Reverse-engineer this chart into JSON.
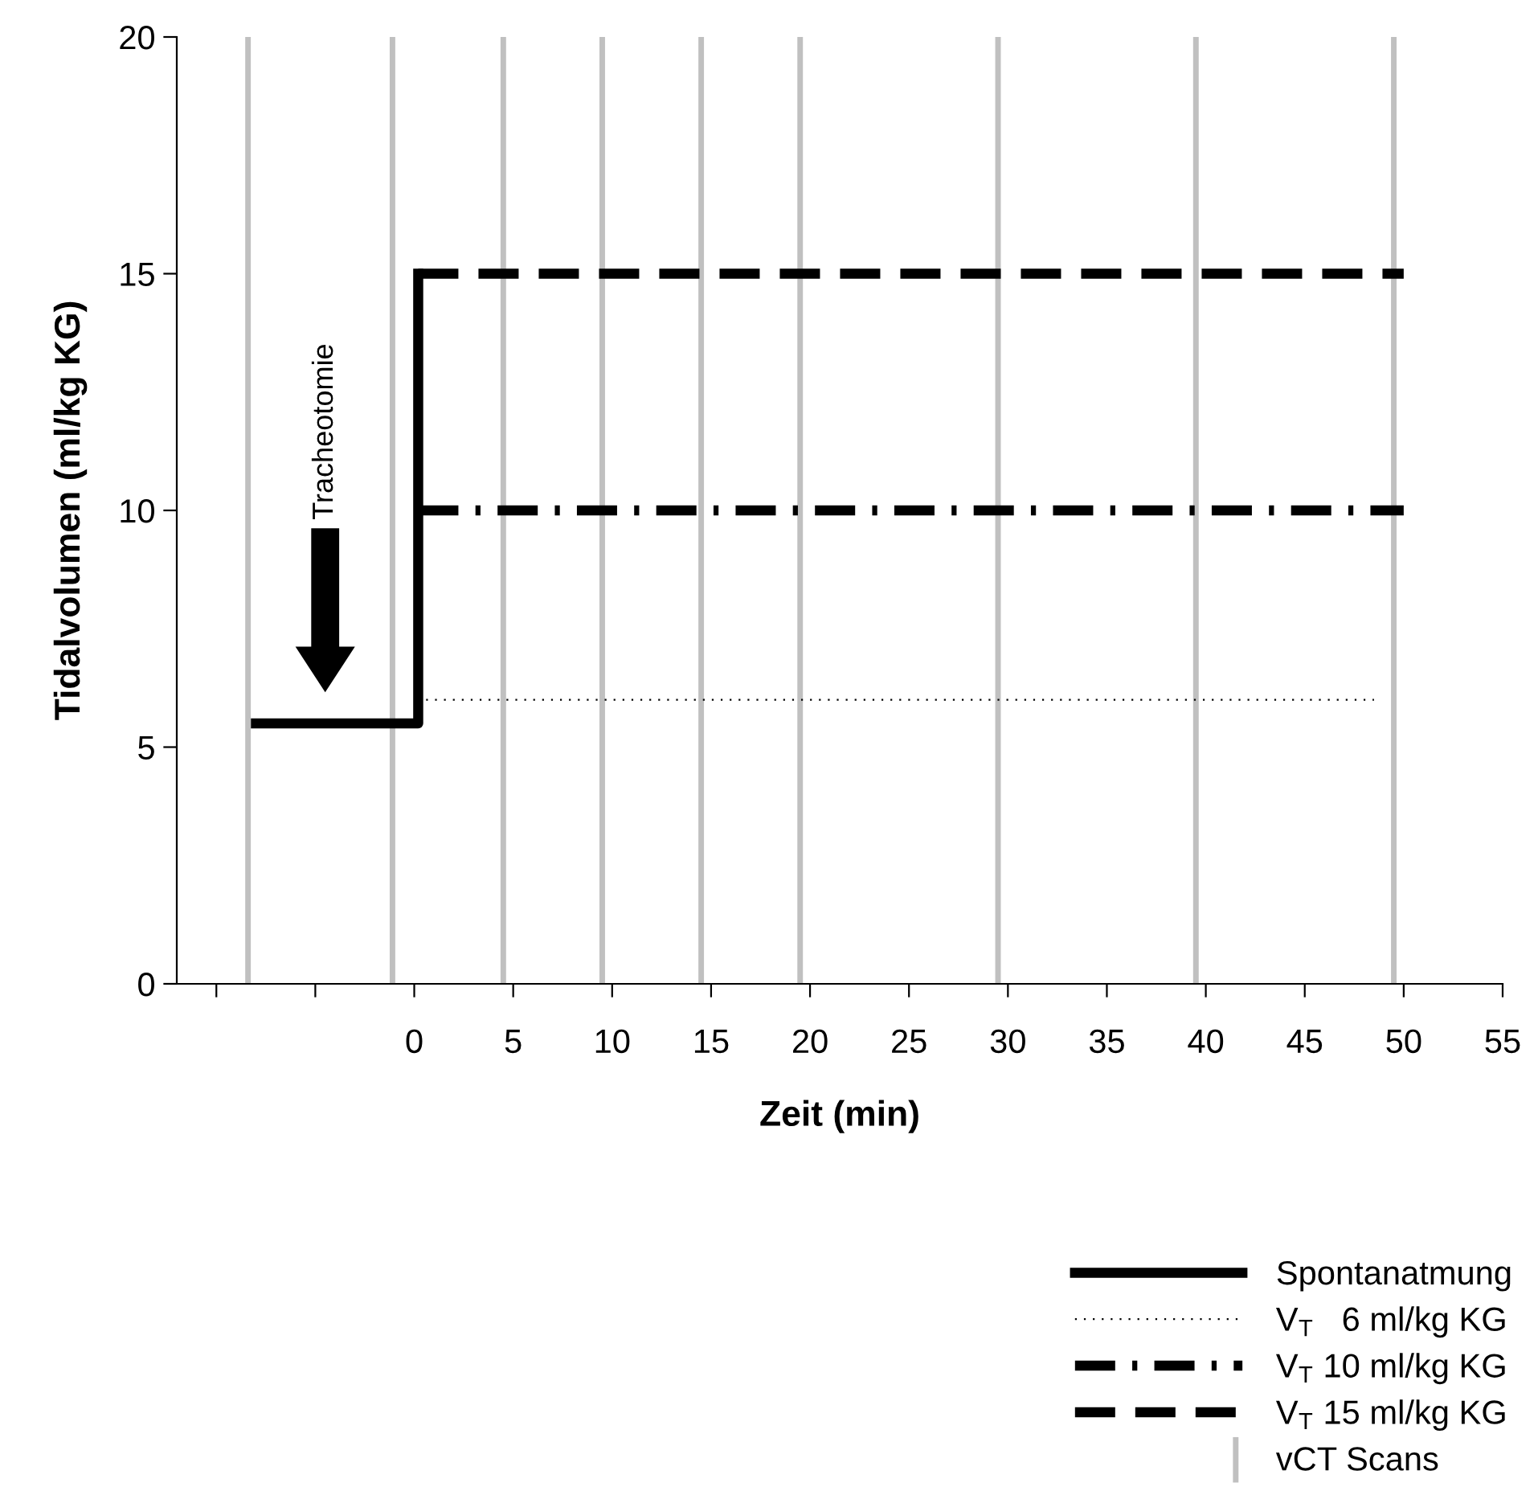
{
  "chart_data": {
    "type": "line",
    "xlabel": "Zeit (min)",
    "ylabel": "Tidalvolumen (ml/kg KG)",
    "xlim": [
      -12,
      55
    ],
    "xticks": [
      {
        "value": -10,
        "label": null
      },
      {
        "value": -5,
        "label": null
      },
      0,
      5,
      10,
      15,
      20,
      25,
      30,
      35,
      40,
      45,
      50,
      55
    ],
    "ylim": [
      0,
      20
    ],
    "yticks": [
      0,
      5,
      10,
      15,
      20
    ],
    "grid": false,
    "legend": "bottom right",
    "marker": "none",
    "series": [
      {
        "name": "Spontanatmung",
        "color": "#000000",
        "line_style": "solid",
        "x": [
          -8,
          0.2,
          0.2
        ],
        "values": [
          5.5,
          5.5,
          15
        ]
      },
      {
        "name": "V$_{T}$   6 ml/kg KG",
        "color": "#000000",
        "line_style": "dotted",
        "x": [
          0.6,
          48.5
        ],
        "values": [
          6,
          6
        ]
      },
      {
        "name": "V$_{T}$ 10 ml/kg KG",
        "color": "#000000",
        "line_style": "dashdot",
        "x": [
          0.2,
          50
        ],
        "values": [
          10,
          10
        ]
      },
      {
        "name": "V$_{T}$ 15 ml/kg KG",
        "color": "#000000",
        "line_style": "dashed",
        "x": [
          0.2,
          50
        ],
        "values": [
          15,
          15
        ]
      }
    ],
    "ref_lines": [
      {
        "axis": "x",
        "value": -8.4,
        "label": "vCT Scans",
        "color": "#c0c0c0"
      },
      {
        "axis": "x",
        "value": -1.1,
        "color": "#c0c0c0"
      },
      {
        "axis": "x",
        "value": 4.5,
        "color": "#c0c0c0"
      },
      {
        "axis": "x",
        "value": 9.5,
        "color": "#c0c0c0"
      },
      {
        "axis": "x",
        "value": 14.5,
        "color": "#c0c0c0"
      },
      {
        "axis": "x",
        "value": 19.5,
        "color": "#c0c0c0"
      },
      {
        "axis": "x",
        "value": 29.5,
        "color": "#c0c0c0"
      },
      {
        "axis": "x",
        "value": 39.5,
        "color": "#c0c0c0"
      },
      {
        "axis": "x",
        "value": 49.5,
        "color": "#c0c0c0"
      }
    ],
    "annotations": [
      "Tracheotomie"
    ]
  }
}
